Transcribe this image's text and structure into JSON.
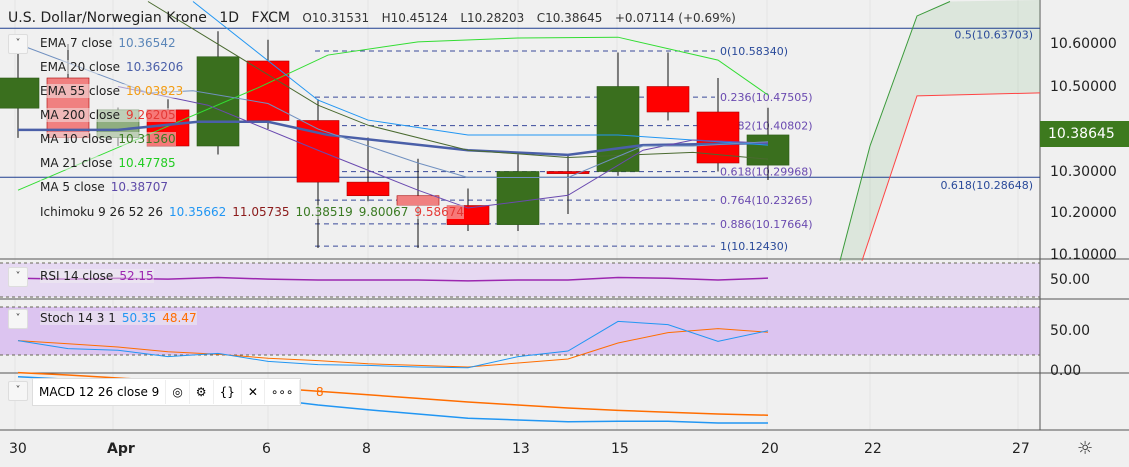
{
  "header": {
    "symbol": "U.S. Dollar/Norwegian Krone",
    "interval": "1D",
    "exchange": "FXCM",
    "open": "O10.31531",
    "high": "H10.45124",
    "low": "L10.28203",
    "close": "C10.38645",
    "change": "+0.07114 (+0.69%)"
  },
  "legend": [
    {
      "label": "EMA 7 close",
      "value": "10.36542",
      "color": "#5b86b8"
    },
    {
      "label": "EMA 20 close",
      "value": "10.36206",
      "color": "#4a5fa8"
    },
    {
      "label": "EMA 55 close",
      "value": "10.03823",
      "color": "#f39c12"
    },
    {
      "label": "MA 200 close",
      "value": "9.26205",
      "color": "#e53935"
    },
    {
      "label": "MA 10 close",
      "value": "10.31360",
      "color": "#3a7a22"
    },
    {
      "label": "MA 21 close",
      "value": "10.47785",
      "color": "#22cc22"
    },
    {
      "label": "MA 5 close",
      "value": "10.38707",
      "color": "#5e4aa8"
    }
  ],
  "ichimoku": {
    "label": "Ichimoku 9 26 52 26",
    "values": [
      {
        "v": "10.35662",
        "color": "#2196f3"
      },
      {
        "v": "11.05735",
        "color": "#8b1a1a"
      },
      {
        "v": "10.38519",
        "color": "#3a7a22"
      },
      {
        "v": "9.80067",
        "color": "#3a7a22"
      },
      {
        "v": "9.58674",
        "color": "#e53935"
      }
    ]
  },
  "rsi": {
    "label": "RSI 14 close",
    "value": "52.15"
  },
  "stoch": {
    "label": "Stoch 14 3 1",
    "k": "50.35",
    "d": "48.47"
  },
  "macd": {
    "label": "MACD 12 26 close 9",
    "value_fragment": "8",
    "tools": [
      "eye-icon",
      "gear-icon",
      "braces-icon",
      "close-icon",
      "more-icon"
    ],
    "tool_glyphs": [
      "◎",
      "⚙",
      "{}",
      "✕",
      "∘∘∘"
    ]
  },
  "price_axis": [
    "10.60000",
    "10.50000",
    "10.30000",
    "10.20000",
    "10.10000"
  ],
  "last_price": "10.38645",
  "rsi_axis": "50.00",
  "stoch_axis": [
    "50.00",
    "0.00"
  ],
  "time_axis": [
    {
      "label": "30",
      "i": 0
    },
    {
      "label": "Apr",
      "i": 2
    },
    {
      "label": "6",
      "i": 5
    },
    {
      "label": "8",
      "i": 7
    },
    {
      "label": "13",
      "i": 10
    },
    {
      "label": "15",
      "i": 12
    },
    {
      "label": "20",
      "i": 15
    },
    {
      "label": "22",
      "i": 17
    },
    {
      "label": "27",
      "i": 20
    }
  ],
  "colors": {
    "up": "#3a6f1e",
    "down": "#ff0000",
    "up_faded": "#8fae80",
    "down_faded": "#f08080"
  },
  "chart_data": {
    "type": "candlestick",
    "dates": [
      "Mar 30",
      "Mar 31",
      "Apr 1",
      "Apr 2",
      "Apr 3",
      "Apr 6",
      "Apr 7",
      "Apr 8",
      "Apr 9",
      "Apr 10",
      "Apr 13",
      "Apr 14",
      "Apr 15",
      "Apr 16",
      "Apr 17",
      "Apr 20"
    ],
    "candles": [
      [
        10.449,
        10.61,
        10.379,
        10.52
      ],
      [
        10.52,
        10.6,
        10.37,
        10.38
      ],
      [
        10.38,
        10.45,
        10.36,
        10.445
      ],
      [
        10.445,
        10.47,
        10.36,
        10.36
      ],
      [
        10.36,
        10.63,
        10.34,
        10.57
      ],
      [
        10.56,
        10.61,
        10.4,
        10.42
      ],
      [
        10.42,
        10.47,
        10.12,
        10.275
      ],
      [
        10.275,
        10.38,
        10.23,
        10.243
      ],
      [
        10.243,
        10.33,
        10.12,
        10.22
      ],
      [
        10.22,
        10.26,
        10.16,
        10.175
      ],
      [
        10.175,
        10.34,
        10.16,
        10.3
      ],
      [
        10.3,
        10.34,
        10.2,
        10.295
      ],
      [
        10.3,
        10.58,
        10.29,
        10.5
      ],
      [
        10.5,
        10.58,
        10.42,
        10.44
      ],
      [
        10.44,
        10.52,
        10.3,
        10.32
      ],
      [
        10.315,
        10.45,
        10.28,
        10.386
      ]
    ],
    "faded": [
      1,
      2,
      8
    ],
    "ylim": [
      10.09,
      10.7
    ],
    "fib_levels": [
      {
        "label": "0(10.58340)",
        "p": 10.5834
      },
      {
        "label": "0.236(10.47505)",
        "p": 10.47505
      },
      {
        "label": "0.382(10.40802)",
        "p": 10.40802
      },
      {
        "label": "0.618(10.29968)",
        "p": 10.29968
      },
      {
        "label": "0.764(10.23265)",
        "p": 10.23265
      },
      {
        "label": "0.886(10.17664)",
        "p": 10.17664
      },
      {
        "label": "1(10.12430)",
        "p": 10.1243
      }
    ],
    "hlines": [
      {
        "label": "0.5(10.63703)",
        "p": 10.63703
      },
      {
        "label": "0.618(10.28648)",
        "p": 10.28648
      }
    ],
    "lines": [
      {
        "name": "ma21",
        "color": "#33dd33",
        "pts": [
          [
            0,
            10.256
          ],
          [
            4.8,
            10.497
          ],
          [
            6.2,
            10.574
          ],
          [
            8,
            10.605
          ],
          [
            10,
            10.614
          ],
          [
            12,
            10.616
          ],
          [
            14,
            10.562
          ],
          [
            15,
            10.48
          ]
        ]
      },
      {
        "name": "ema20",
        "color": "#4a5fa8",
        "width": 2.5,
        "pts": [
          [
            0,
            10.398
          ],
          [
            2,
            10.398
          ],
          [
            3.6,
            10.417
          ],
          [
            5,
            10.417
          ],
          [
            6.2,
            10.386
          ],
          [
            9,
            10.35
          ],
          [
            11,
            10.339
          ],
          [
            12.5,
            10.362
          ],
          [
            15,
            10.367
          ]
        ]
      },
      {
        "name": "tenkan",
        "color": "#2196f3",
        "pts": [
          [
            3.5,
            10.7
          ],
          [
            6,
            10.468
          ],
          [
            7,
            10.421
          ],
          [
            9,
            10.386
          ],
          [
            12,
            10.386
          ],
          [
            15,
            10.362
          ]
        ]
      },
      {
        "name": "ma10",
        "color": "#4a6a30",
        "pts": [
          [
            2.6,
            10.7
          ],
          [
            6,
            10.456
          ],
          [
            7,
            10.409
          ],
          [
            9,
            10.35
          ],
          [
            11,
            10.333
          ],
          [
            13.5,
            10.345
          ],
          [
            15,
            10.329
          ]
        ]
      },
      {
        "name": "ma5",
        "color": "#6a4ab0",
        "pts": [
          [
            2,
            10.5
          ],
          [
            3.8,
            10.456
          ],
          [
            6,
            10.35
          ],
          [
            8,
            10.256
          ],
          [
            9,
            10.214
          ],
          [
            11,
            10.244
          ],
          [
            12.5,
            10.35
          ],
          [
            13.5,
            10.374
          ],
          [
            15,
            10.367
          ]
        ]
      },
      {
        "name": "ema7",
        "color": "#7090c0",
        "pts": [
          [
            0,
            10.6
          ],
          [
            2.6,
            10.485
          ],
          [
            3.5,
            10.49
          ],
          [
            5,
            10.46
          ],
          [
            6,
            10.4
          ],
          [
            8,
            10.32
          ],
          [
            9,
            10.286
          ],
          [
            11,
            10.286
          ],
          [
            12.5,
            10.36
          ],
          [
            13.5,
            10.36
          ],
          [
            15,
            10.37
          ]
        ]
      },
      {
        "name": "senkou_a",
        "color": "#3a9a3a",
        "pts": [
          [
            16.44,
            10.09
          ],
          [
            17.04,
            10.36
          ],
          [
            17.98,
            10.666
          ],
          [
            18.64,
            10.7
          ]
        ]
      },
      {
        "name": "senkou_b",
        "color": "#ff4444",
        "pts": [
          [
            16.88,
            10.09
          ],
          [
            17.98,
            10.478
          ],
          [
            20.44,
            10.485
          ]
        ]
      }
    ],
    "rsi": {
      "ylim": [
        30,
        70
      ],
      "values": [
        52,
        51,
        52,
        51,
        53,
        51,
        50,
        50,
        50,
        49,
        50,
        50,
        53,
        52,
        50,
        52.15
      ]
    },
    "stoch": {
      "ylim": [
        0,
        100
      ],
      "k": [
        38,
        28,
        26,
        18,
        22,
        12,
        8,
        7,
        5,
        4,
        18,
        25,
        62,
        58,
        37,
        50.35
      ],
      "d": [
        38,
        34,
        30,
        24,
        21,
        16,
        13,
        9,
        7,
        5,
        10,
        15,
        35,
        48,
        53,
        48.47
      ]
    },
    "macd": {
      "ylim": [
        -0.1,
        0
      ],
      "macd": [
        -0.008,
        -0.012,
        -0.02,
        -0.03,
        -0.035,
        -0.045,
        -0.055,
        -0.063,
        -0.07,
        -0.077,
        -0.08,
        -0.083,
        -0.082,
        -0.082,
        -0.085,
        -0.085
      ],
      "signal": [
        -0.001,
        -0.005,
        -0.01,
        -0.015,
        -0.02,
        -0.026,
        -0.032,
        -0.038,
        -0.044,
        -0.05,
        -0.055,
        -0.06,
        -0.064,
        -0.067,
        -0.07,
        -0.072
      ]
    }
  }
}
